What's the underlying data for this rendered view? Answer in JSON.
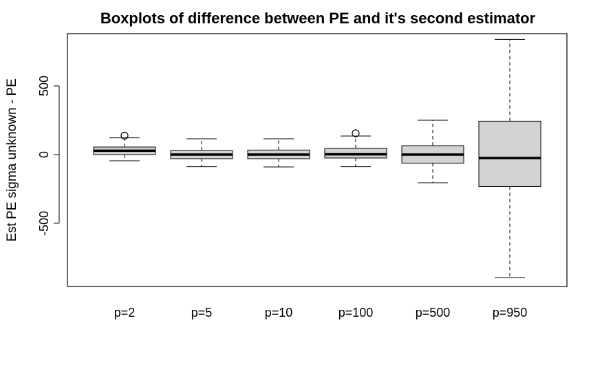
{
  "chart_data": {
    "type": "box",
    "title": "Boxplots of difference between PE and it's second estimator",
    "xlabel": "",
    "ylabel": "Est PE sigma unknown - PE",
    "ylim": [
      -960,
      880
    ],
    "yticks": [
      -500,
      0,
      500
    ],
    "ytick_labels": [
      "-500",
      "0",
      "500"
    ],
    "grid": false,
    "legend": "none",
    "box_fill": "#d3d3d3",
    "categories": [
      "p=2",
      "p=5",
      "p=10",
      "p=100",
      "p=500",
      "p=950"
    ],
    "boxes": [
      {
        "whisker_low": -45,
        "q1": 0,
        "median": 28,
        "q3": 55,
        "whisker_high": 122,
        "outliers": [
          138
        ]
      },
      {
        "whisker_low": -88,
        "q1": -30,
        "median": 0,
        "q3": 30,
        "whisker_high": 115,
        "outliers": []
      },
      {
        "whisker_low": -90,
        "q1": -30,
        "median": 0,
        "q3": 33,
        "whisker_high": 115,
        "outliers": []
      },
      {
        "whisker_low": -88,
        "q1": -25,
        "median": 2,
        "q3": 45,
        "whisker_high": 135,
        "outliers": [
          155
        ]
      },
      {
        "whisker_low": -205,
        "q1": -62,
        "median": 0,
        "q3": 65,
        "whisker_high": 250,
        "outliers": []
      },
      {
        "whisker_low": -895,
        "q1": -232,
        "median": -25,
        "q3": 243,
        "whisker_high": 838,
        "outliers": []
      }
    ]
  }
}
